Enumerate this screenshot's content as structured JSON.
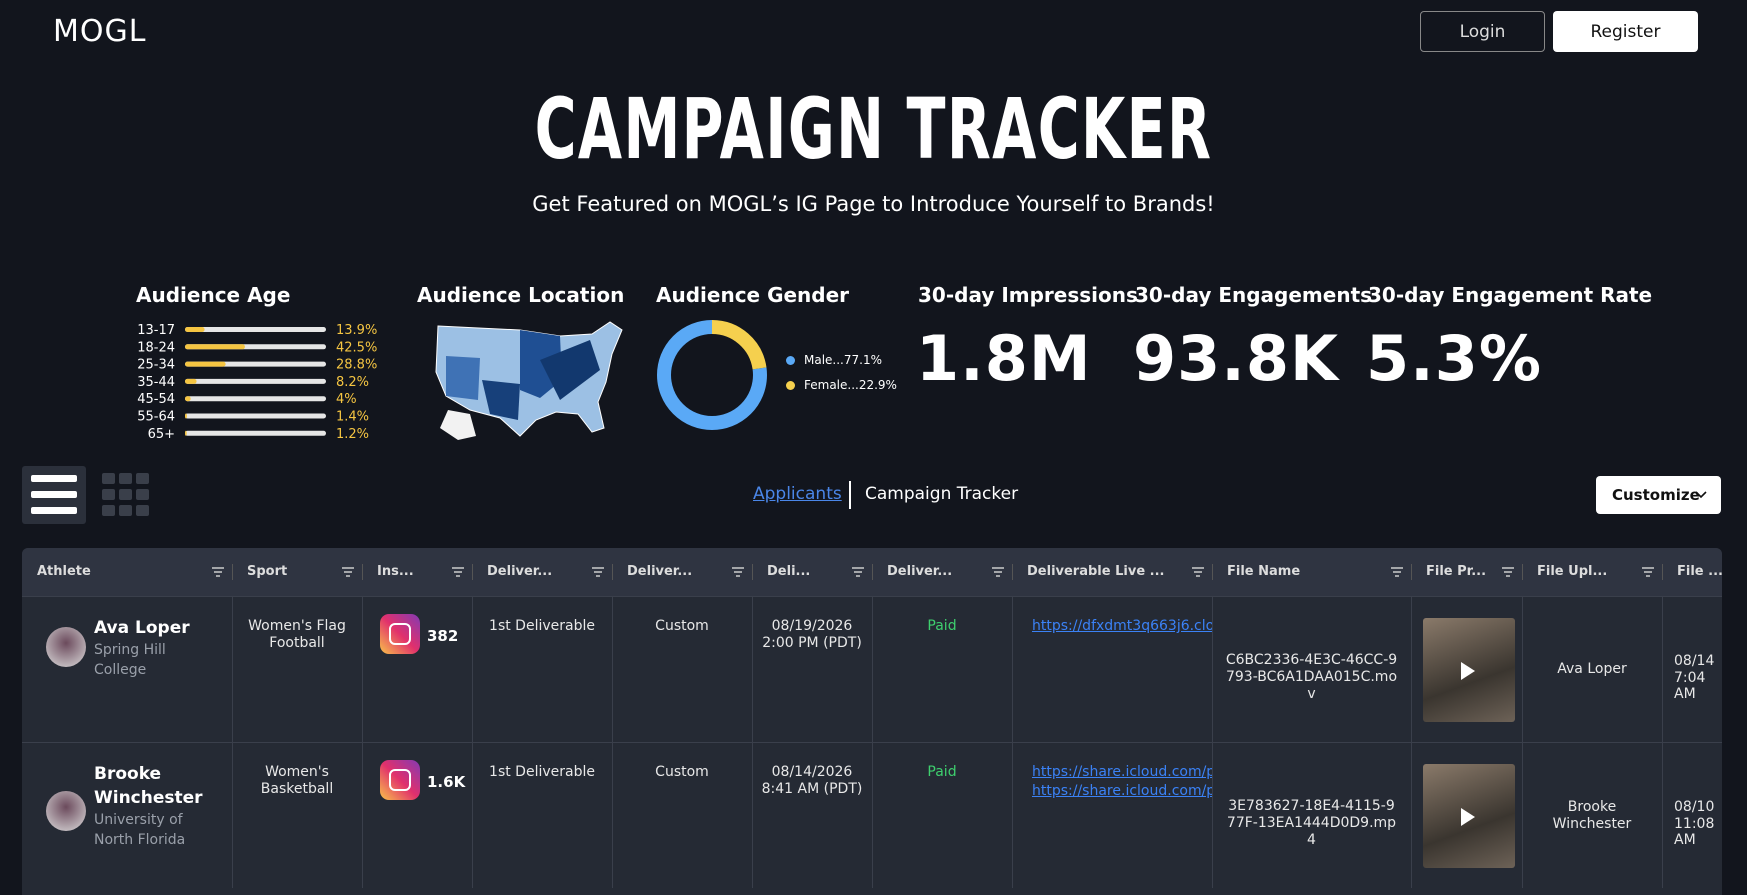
{
  "header": {
    "logo": "MOGL",
    "login": "Login",
    "register": "Register"
  },
  "hero": {
    "title": "CAMPAIGN TRACKER",
    "subtitle": "Get Featured on MOGL’s IG Page to Introduce Yourself to Brands!"
  },
  "stats": {
    "audience_age": {
      "title": "Audience Age",
      "categories": [
        "13-17",
        "18-24",
        "25-34",
        "35-44",
        "45-54",
        "55-64",
        "65+"
      ],
      "values": [
        13.9,
        42.5,
        28.8,
        8.2,
        4,
        1.4,
        1.2
      ],
      "value_labels": [
        "13.9%",
        "42.5%",
        "28.8%",
        "8.2%",
        "4%",
        "1.4%",
        "1.2%"
      ],
      "color": "#f5c542"
    },
    "audience_location": {
      "title": "Audience Location"
    },
    "audience_gender": {
      "title": "Audience Gender",
      "categories": [
        "Male...77.1%",
        "Female...22.9%"
      ],
      "values": [
        77.1,
        22.9
      ],
      "colors": [
        "#5aa9f6",
        "#f5d04e"
      ]
    },
    "metrics": [
      {
        "title": "30-day Impressions",
        "value": "1.8M"
      },
      {
        "title": "30-day Engagements",
        "value": "93.8K"
      },
      {
        "title": "30-day Engagement Rate",
        "value": "5.3%"
      }
    ]
  },
  "tabs": {
    "applicants": "Applicants",
    "campaign_tracker": "Campaign Tracker",
    "customize": "Customize"
  },
  "table": {
    "columns": [
      "Athlete",
      "Sport",
      "Ins...",
      "Deliver...",
      "Deliver...",
      "Deli...",
      "Deliver...",
      "Deliverable Live ...",
      "File Name",
      "File Pr...",
      "File Upl...",
      "File ..."
    ],
    "rows": [
      {
        "athlete": "Ava Loper",
        "school": "Spring Hill College",
        "sport": "Women's Flag Football",
        "followers": "382",
        "deliverable": "1st Deliverable",
        "type": "Custom",
        "due": [
          "08/19/2026",
          "2:00 PM (PDT)"
        ],
        "status": "Paid",
        "links": [
          "https://dfxdmt3q663j6.clo..."
        ],
        "file_name": "C6BC2336-4E3C-46CC-9793-BC6A1DAA015C.mov",
        "uploader": "Ava Loper",
        "uploaded": [
          "08/14",
          "7:04 AM"
        ]
      },
      {
        "athlete": "Brooke Winchester",
        "school": "University of North Florida",
        "sport": "Women's Basketball",
        "followers": "1.6K",
        "deliverable": "1st Deliverable",
        "type": "Custom",
        "due": [
          "08/14/2026",
          "8:41 AM (PDT)"
        ],
        "status": "Paid",
        "links": [
          "https://share.icloud.com/p...",
          "https://share.icloud.com/p..."
        ],
        "file_name": "3E783627-18E4-4115-977F-13EA1444D0D9.mp4",
        "uploader": "Brooke Winchester",
        "uploaded": [
          "08/10",
          "11:08 AM"
        ]
      }
    ]
  }
}
